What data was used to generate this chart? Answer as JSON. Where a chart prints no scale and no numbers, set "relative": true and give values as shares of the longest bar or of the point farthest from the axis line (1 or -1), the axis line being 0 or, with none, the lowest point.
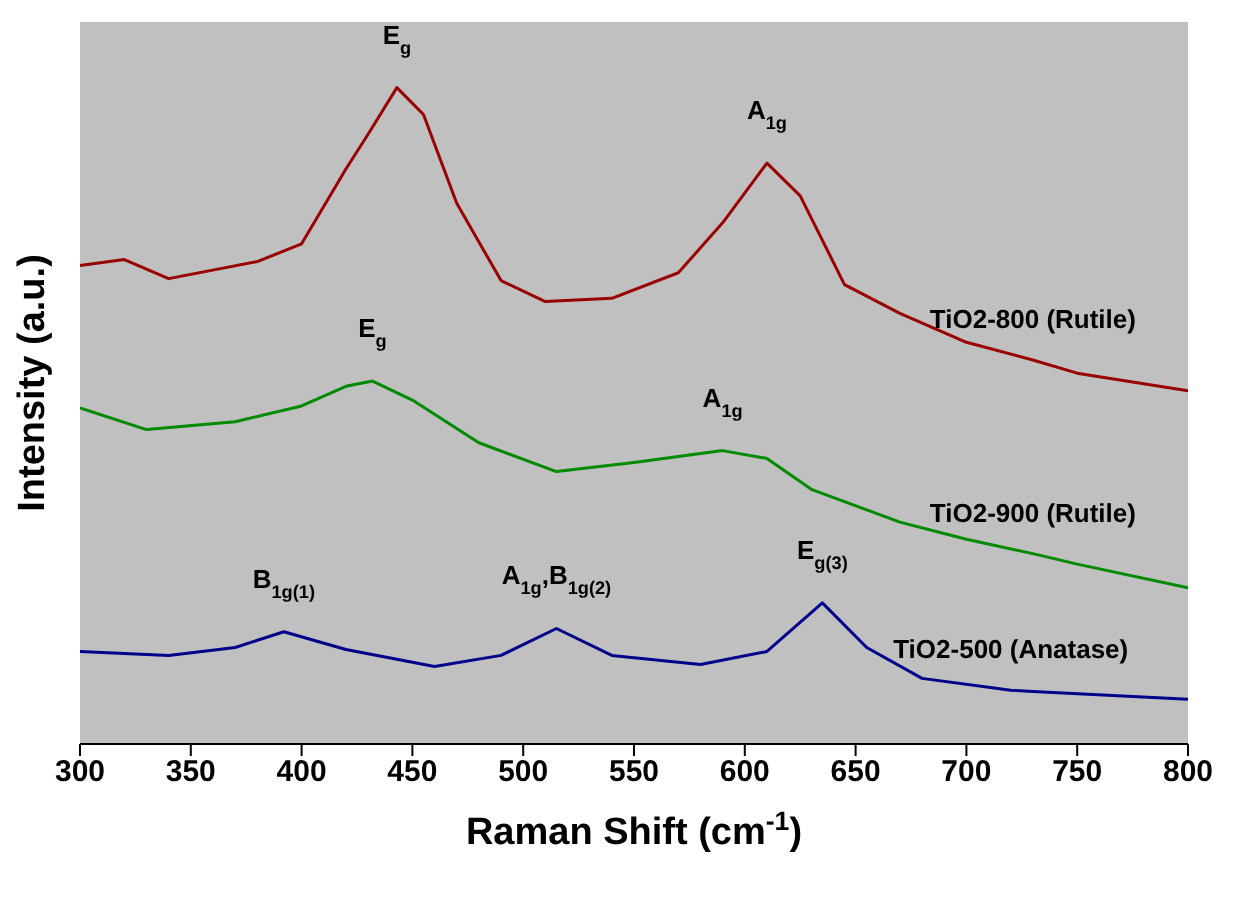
{
  "chart_data": {
    "type": "line",
    "relative": true,
    "xlabel": "Raman Shift (cm$^{-1}$)",
    "ylabel": "Intensity (a.u.)",
    "xlim": [
      300,
      800
    ],
    "xticks": [
      300,
      350,
      400,
      450,
      500,
      550,
      600,
      650,
      700,
      750,
      800
    ],
    "grid": false,
    "legend": false,
    "marker": "none",
    "line_style": "solid",
    "series": [
      {
        "name": "TiO2-800 (Rutile)",
        "color": "#990000",
        "x": [
          300,
          320,
          340,
          380,
          400,
          420,
          430,
          443,
          455,
          470,
          490,
          510,
          540,
          570,
          590,
          610,
          625,
          645,
          670,
          700,
          730,
          750,
          800
        ],
        "values": [
          0.729,
          0.738,
          0.709,
          0.735,
          0.762,
          0.876,
          0.929,
          1.0,
          0.959,
          0.824,
          0.706,
          0.674,
          0.679,
          0.718,
          0.794,
          0.885,
          0.835,
          0.7,
          0.656,
          0.612,
          0.585,
          0.565,
          0.538
        ]
      },
      {
        "name": "TiO2-900 (Rutile)",
        "color": "#008a00",
        "x": [
          300,
          330,
          370,
          400,
          420,
          432,
          450,
          480,
          515,
          550,
          590,
          610,
          630,
          670,
          700,
          730,
          750,
          800
        ],
        "values": [
          0.512,
          0.479,
          0.491,
          0.515,
          0.545,
          0.553,
          0.524,
          0.459,
          0.415,
          0.429,
          0.447,
          0.435,
          0.388,
          0.338,
          0.312,
          0.29,
          0.274,
          0.238
        ]
      },
      {
        "name": "TiO2-500 (Anatase)",
        "color": "#00008b",
        "x": [
          300,
          340,
          370,
          392,
          420,
          460,
          490,
          515,
          540,
          580,
          610,
          635,
          655,
          680,
          720,
          730,
          800
        ],
        "values": [
          0.141,
          0.135,
          0.147,
          0.171,
          0.144,
          0.118,
          0.135,
          0.176,
          0.135,
          0.121,
          0.141,
          0.215,
          0.147,
          0.1,
          0.082,
          0.08,
          0.068
        ]
      }
    ],
    "annotations": [
      {
        "text": "E$_{g}$",
        "x": 443,
        "y": 1.0
      },
      {
        "text": "A$_{1g}$",
        "x": 610,
        "y": 0.885
      },
      {
        "text": "E$_{g}$",
        "x": 432,
        "y": 0.553
      },
      {
        "text": "A$_{1g}$",
        "x": 590,
        "y": 0.447
      },
      {
        "text": "B$_{1g(1)}$",
        "x": 392,
        "y": 0.171
      },
      {
        "text": "A$_{1g}$,B$_{1g(2)}$",
        "x": 515,
        "y": 0.176
      },
      {
        "text": "E$_{g(3)}$",
        "x": 635,
        "y": 0.215
      }
    ]
  }
}
